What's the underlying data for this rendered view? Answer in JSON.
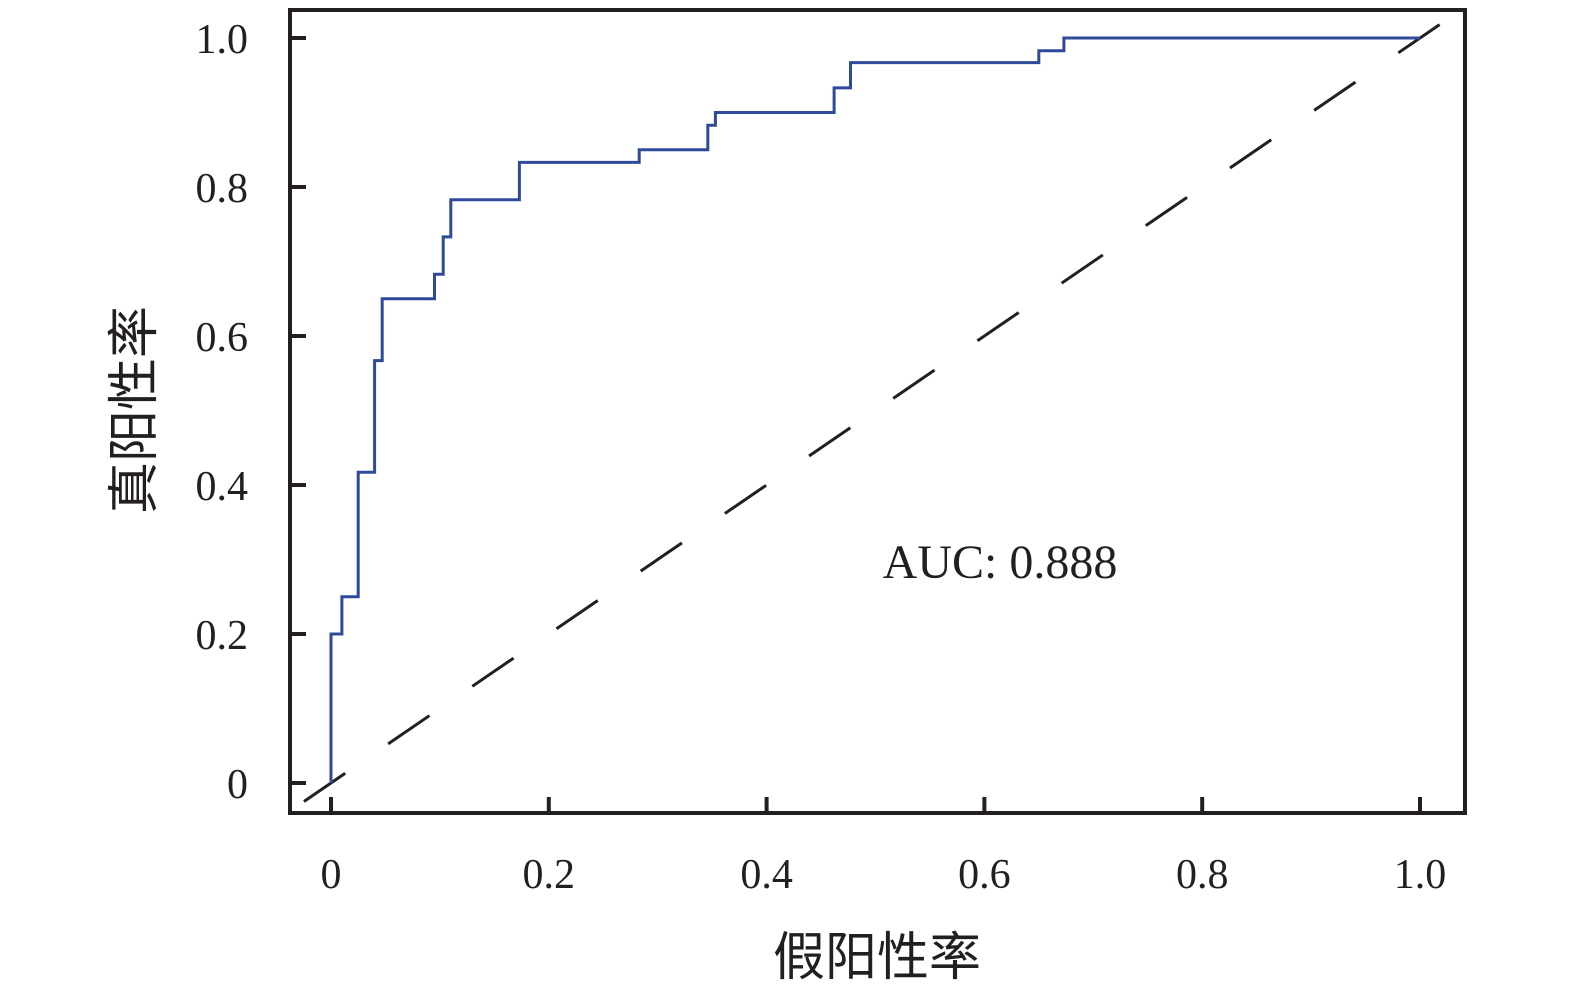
{
  "chart_data": {
    "type": "line",
    "xlabel": "假阳性率",
    "ylabel": "真阳性率",
    "xlim": [
      0,
      1.0
    ],
    "ylim": [
      0,
      1.0
    ],
    "x_ticks": [
      "0",
      "0.2",
      "0.4",
      "0.6",
      "0.8",
      "1.0"
    ],
    "y_ticks": [
      "0",
      "0.2",
      "0.4",
      "0.6",
      "0.8",
      "1.0"
    ],
    "annotation": "AUC: 0.888",
    "grid": false,
    "colors": {
      "roc": "#2f4a9a",
      "diagonal": "#231f20",
      "frame": "#231f20"
    },
    "series": [
      {
        "style": "step",
        "x": [
          0,
          0,
          0.01,
          0.01,
          0.025,
          0.025,
          0.04,
          0.04,
          0.047,
          0.047,
          0.095,
          0.095,
          0.103,
          0.103,
          0.11,
          0.11,
          0.173,
          0.173,
          0.283,
          0.283,
          0.346,
          0.346,
          0.353,
          0.353,
          0.462,
          0.462,
          0.477,
          0.477,
          0.65,
          0.65,
          0.673,
          0.673,
          1.0
        ],
        "y": [
          0,
          0.2,
          0.2,
          0.25,
          0.25,
          0.417,
          0.417,
          0.567,
          0.567,
          0.65,
          0.65,
          0.683,
          0.683,
          0.733,
          0.733,
          0.783,
          0.783,
          0.833,
          0.833,
          0.85,
          0.85,
          0.883,
          0.883,
          0.9,
          0.9,
          0.933,
          0.933,
          0.967,
          0.967,
          0.983,
          0.983,
          1.0,
          1.0
        ]
      },
      {
        "style": "dashed",
        "x": [
          -0.04,
          1.04
        ],
        "y": [
          -0.04,
          1.04
        ]
      }
    ]
  }
}
